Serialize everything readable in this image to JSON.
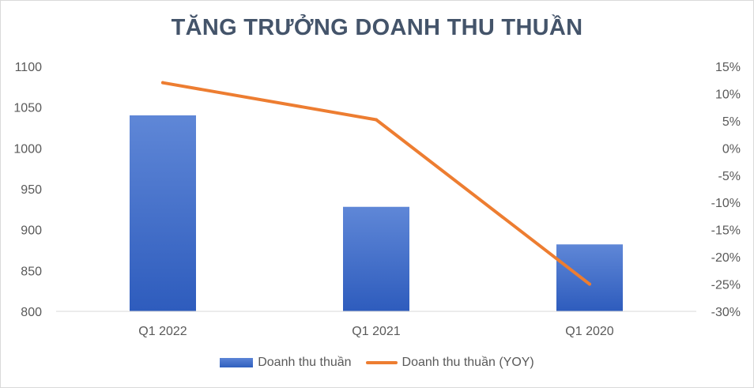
{
  "chart_data": {
    "type": "bar",
    "title": "TĂNG TRƯỞNG DOANH THU THUẦN",
    "categories": [
      "Q1 2022",
      "Q1 2021",
      "Q1 2020"
    ],
    "series": [
      {
        "name": "Doanh thu thuần",
        "type": "bar",
        "axis": "left",
        "values": [
          1040,
          928,
          882
        ],
        "color": "#4472c4"
      },
      {
        "name": "Doanh thu thuần (YOY)",
        "type": "line",
        "axis": "right",
        "values": [
          12,
          5.2,
          -25
        ],
        "color": "#ed7d31"
      }
    ],
    "left_axis": {
      "ylim": [
        800,
        1100
      ],
      "ticks": [
        "1100",
        "1050",
        "1000",
        "950",
        "900",
        "850",
        "800"
      ],
      "tick_values": [
        1100,
        1050,
        1000,
        950,
        900,
        850,
        800
      ]
    },
    "right_axis": {
      "ylim": [
        -30,
        15
      ],
      "ticks": [
        "15%",
        "10%",
        "5%",
        "0%",
        "-5%",
        "-10%",
        "-15%",
        "-20%",
        "-25%",
        "-30%"
      ],
      "tick_values": [
        15,
        10,
        5,
        0,
        -5,
        -10,
        -15,
        -20,
        -25,
        -30
      ]
    },
    "grid": false,
    "legend": "bottom"
  }
}
